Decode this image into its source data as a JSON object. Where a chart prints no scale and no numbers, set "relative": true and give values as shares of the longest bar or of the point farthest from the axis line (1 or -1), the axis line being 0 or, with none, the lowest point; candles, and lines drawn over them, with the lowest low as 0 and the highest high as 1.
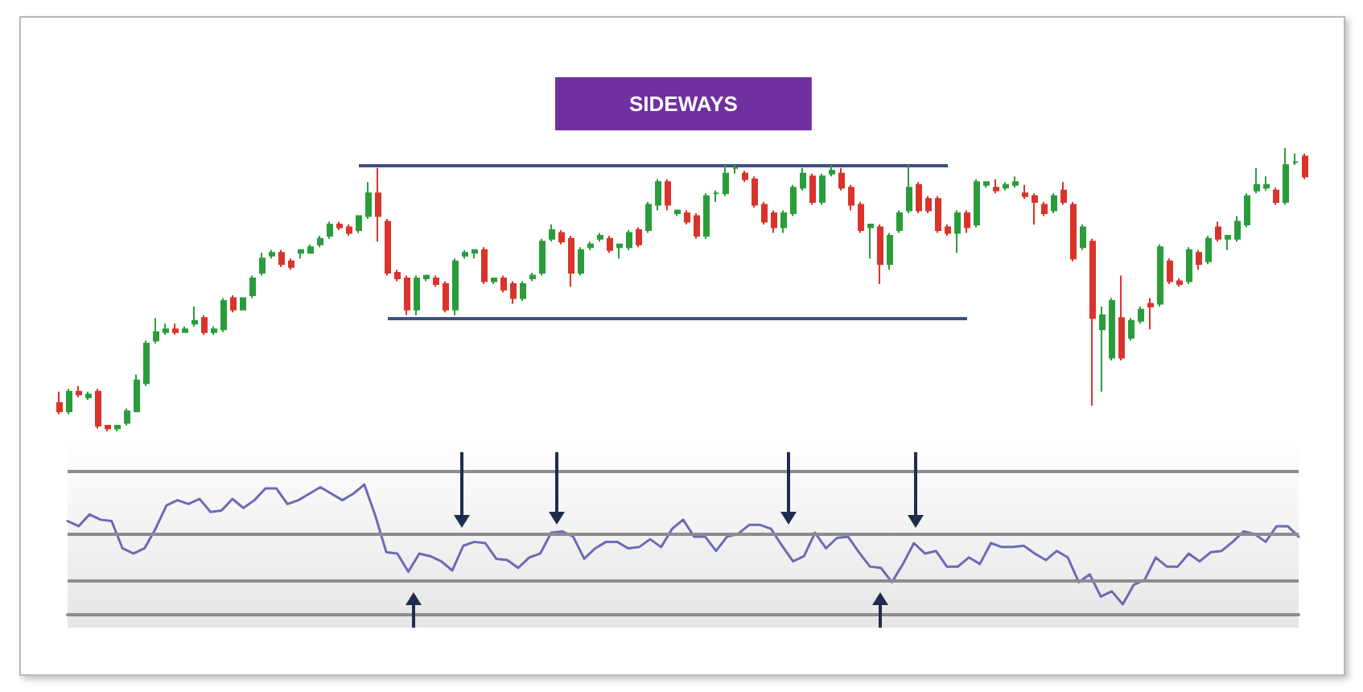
{
  "chart_data": [
    {
      "type": "candlestick",
      "title": "SIDEWAYS",
      "relative": true,
      "colors": [
        "#d9342b",
        "#2a9d3a",
        "#d9342b",
        "#2a9d3a",
        "#d9342b",
        "#d9342b",
        "#2a9d3a",
        "#2a9d3a",
        "#2a9d3a",
        "#2a9d3a",
        "#2a9d3a",
        "#2a9d3a",
        "#d9342b",
        "#2a9d3a",
        "#2a9d3a",
        "#d9342b",
        "#2a9d3a",
        "#2a9d3a",
        "#d9342b",
        "#2a9d3a",
        "#2a9d3a",
        "#2a9d3a",
        "#2a9d3a",
        "#d9342b",
        "#d9342b",
        "#2a9d3a",
        "#2a9d3a",
        "#2a9d3a",
        "#2a9d3a",
        "#d9342b",
        "#d9342b",
        "#2a9d3a",
        "#2a9d3a",
        "#d9342b",
        "#d9342b",
        "#d9342b",
        "#d9342b",
        "#2a9d3a",
        "#2a9d3a",
        "#d9342b",
        "#d9342b",
        "#2a9d3a",
        "#2a9d3a",
        "#2a9d3a",
        "#d9342b",
        "#2a9d3a",
        "#d9342b",
        "#d9342b",
        "#2a9d3a",
        "#2a9d3a",
        "#2a9d3a",
        "#2a9d3a",
        "#d9342b",
        "#d9342b",
        "#2a9d3a",
        "#2a9d3a",
        "#2a9d3a",
        "#d9342b",
        "#2a9d3a",
        "#2a9d3a",
        "#d9342b",
        "#2a9d3a",
        "#2a9d3a",
        "#d9342b",
        "#2a9d3a",
        "#d9342b",
        "#d9342b",
        "#2a9d3a",
        "#2a9d3a",
        "#2a9d3a",
        "#2a9d3a",
        "#d9342b",
        "#d9342b",
        "#d9342b",
        "#d9342b",
        "#2a9d3a",
        "#2a9d3a",
        "#2a9d3a",
        "#d9342b",
        "#2a9d3a",
        "#2a9d3a",
        "#d9342b",
        "#d9342b",
        "#d9342b",
        "#2a9d3a",
        "#d9342b",
        "#2a9d3a",
        "#2a9d3a",
        "#2a9d3a",
        "#d9342b",
        "#d9342b",
        "#d9342b",
        "#d9342b",
        "#2a9d3a",
        "#d9342b",
        "#2a9d3a",
        "#2a9d3a",
        "#d9342b",
        "#2a9d3a",
        "#2a9d3a",
        "#d9342b",
        "#d9342b",
        "#d9342b",
        "#2a9d3a",
        "#d9342b",
        "#d9342b",
        "#2a9d3a",
        "#d9342b",
        "#2a9d3a",
        "#2a9d3a",
        "#d9342b",
        "#2a9d3a",
        "#2a9d3a",
        "#d9342b",
        "#2a9d3a",
        "#d9342b",
        "#d9342b",
        "#2a9d3a",
        "#d9342b",
        "#2a9d3a",
        "#d9342b",
        "#2a9d3a",
        "#2a9d3a",
        "#2a9d3a",
        "#2a9d3a",
        "#2a9d3a",
        "#d9342b",
        "#2a9d3a",
        "#2a9d3a",
        "#d9342b"
      ],
      "categories": [
        null,
        null,
        null,
        null,
        null,
        null,
        null,
        null,
        null,
        null,
        null,
        null,
        null,
        null,
        null,
        null,
        null,
        null,
        null,
        null,
        null,
        null,
        null,
        null,
        null,
        null,
        null,
        null,
        null,
        null,
        null,
        null,
        null,
        null,
        null,
        null,
        null,
        null,
        null,
        null,
        null,
        null,
        null,
        null,
        null,
        null,
        null,
        null,
        null,
        null,
        null,
        null,
        null,
        null,
        null,
        null,
        null,
        null,
        null,
        null,
        null,
        null,
        null,
        null,
        null,
        null,
        null,
        null,
        null,
        null,
        null,
        null,
        null,
        null,
        null,
        null,
        null,
        null,
        null,
        null,
        null,
        null,
        null,
        null,
        null,
        null,
        null,
        null,
        null,
        null,
        null,
        null,
        null,
        null,
        null,
        null,
        null,
        null,
        null,
        null,
        null,
        null,
        null,
        null,
        null,
        null,
        null,
        null,
        null,
        null,
        null,
        null,
        null,
        null,
        null,
        null,
        null,
        null,
        null,
        null,
        null,
        null,
        null,
        null,
        null,
        null,
        null,
        null,
        null,
        null
      ],
      "ohlc": [
        [
          0.1,
          0.14,
          0.06,
          0.07
        ],
        [
          0.07,
          0.15,
          0.06,
          0.14
        ],
        [
          0.14,
          0.16,
          0.12,
          0.13
        ],
        [
          0.12,
          0.14,
          0.11,
          0.13
        ],
        [
          0.14,
          0.15,
          0.01,
          0.02
        ],
        [
          0.02,
          0.02,
          0,
          0.01
        ],
        [
          0.01,
          0.02,
          0,
          0.02
        ],
        [
          0.03,
          0.08,
          0.02,
          0.07
        ],
        [
          0.07,
          0.2,
          0.07,
          0.18
        ],
        [
          0.17,
          0.32,
          0.16,
          0.31
        ],
        [
          0.32,
          0.4,
          0.31,
          0.35
        ],
        [
          0.35,
          0.38,
          0.34,
          0.36
        ],
        [
          0.36,
          0.38,
          0.34,
          0.35
        ],
        [
          0.35,
          0.37,
          0.35,
          0.36
        ],
        [
          0.38,
          0.44,
          0.37,
          0.39
        ],
        [
          0.4,
          0.41,
          0.34,
          0.35
        ],
        [
          0.35,
          0.37,
          0.34,
          0.36
        ],
        [
          0.36,
          0.47,
          0.35,
          0.46
        ],
        [
          0.47,
          0.48,
          0.42,
          0.43
        ],
        [
          0.43,
          0.47,
          0.43,
          0.47
        ],
        [
          0.48,
          0.55,
          0.47,
          0.54
        ],
        [
          0.56,
          0.63,
          0.55,
          0.61
        ],
        [
          0.62,
          0.64,
          0.61,
          0.63
        ],
        [
          0.63,
          0.64,
          0.58,
          0.59
        ],
        [
          0.6,
          0.61,
          0.57,
          0.58
        ],
        [
          0.63,
          0.64,
          0.61,
          0.64
        ],
        [
          0.63,
          0.66,
          0.63,
          0.65
        ],
        [
          0.66,
          0.69,
          0.65,
          0.68
        ],
        [
          0.69,
          0.74,
          0.68,
          0.73
        ],
        [
          0.73,
          0.74,
          0.71,
          0.72
        ],
        [
          0.72,
          0.73,
          0.69,
          0.7
        ],
        [
          0.71,
          0.76,
          0.7,
          0.76
        ],
        [
          0.76,
          0.88,
          0.75,
          0.84
        ],
        [
          0.84,
          0.93,
          0.67,
          0.76
        ],
        [
          0.74,
          0.75,
          0.55,
          0.56
        ],
        [
          0.56,
          0.57,
          0.53,
          0.54
        ],
        [
          0.54,
          0.55,
          0.41,
          0.43
        ],
        [
          0.43,
          0.55,
          0.41,
          0.54
        ],
        [
          0.54,
          0.55,
          0.53,
          0.55
        ],
        [
          0.54,
          0.55,
          0.51,
          0.52
        ],
        [
          0.52,
          0.53,
          0.42,
          0.43
        ],
        [
          0.43,
          0.61,
          0.41,
          0.6
        ],
        [
          0.62,
          0.64,
          0.61,
          0.63
        ],
        [
          0.63,
          0.64,
          0.61,
          0.64
        ],
        [
          0.64,
          0.65,
          0.52,
          0.53
        ],
        [
          0.53,
          0.54,
          0.52,
          0.54
        ],
        [
          0.54,
          0.55,
          0.49,
          0.5
        ],
        [
          0.52,
          0.53,
          0.45,
          0.47
        ],
        [
          0.47,
          0.53,
          0.46,
          0.52
        ],
        [
          0.54,
          0.56,
          0.53,
          0.55
        ],
        [
          0.56,
          0.68,
          0.55,
          0.67
        ],
        [
          0.68,
          0.73,
          0.67,
          0.71
        ],
        [
          0.7,
          0.71,
          0.66,
          0.67
        ],
        [
          0.68,
          0.69,
          0.51,
          0.56
        ],
        [
          0.56,
          0.65,
          0.55,
          0.64
        ],
        [
          0.65,
          0.67,
          0.64,
          0.66
        ],
        [
          0.68,
          0.7,
          0.67,
          0.69
        ],
        [
          0.68,
          0.69,
          0.63,
          0.64
        ],
        [
          0.65,
          0.66,
          0.61,
          0.66
        ],
        [
          0.65,
          0.71,
          0.64,
          0.7
        ],
        [
          0.71,
          0.72,
          0.65,
          0.66
        ],
        [
          0.71,
          0.81,
          0.7,
          0.8
        ],
        [
          0.8,
          0.89,
          0.78,
          0.88
        ],
        [
          0.88,
          0.89,
          0.78,
          0.8
        ],
        [
          0.77,
          0.78,
          0.76,
          0.78
        ],
        [
          0.77,
          0.78,
          0.73,
          0.74
        ],
        [
          0.76,
          0.77,
          0.68,
          0.69
        ],
        [
          0.69,
          0.84,
          0.68,
          0.83
        ],
        [
          0.84,
          0.85,
          0.81,
          0.84
        ],
        [
          0.84,
          0.94,
          0.83,
          0.91
        ],
        [
          0.93,
          0.94,
          0.91,
          0.93
        ],
        [
          0.91,
          0.92,
          0.88,
          0.89
        ],
        [
          0.89,
          0.9,
          0.79,
          0.8
        ],
        [
          0.8,
          0.81,
          0.73,
          0.74
        ],
        [
          0.77,
          0.78,
          0.7,
          0.72
        ],
        [
          0.72,
          0.78,
          0.7,
          0.77
        ],
        [
          0.77,
          0.87,
          0.76,
          0.86
        ],
        [
          0.86,
          0.93,
          0.85,
          0.91
        ],
        [
          0.9,
          0.91,
          0.8,
          0.81
        ],
        [
          0.81,
          0.91,
          0.8,
          0.9
        ],
        [
          0.91,
          0.94,
          0.9,
          0.92
        ],
        [
          0.91,
          0.93,
          0.85,
          0.86
        ],
        [
          0.86,
          0.87,
          0.78,
          0.8
        ],
        [
          0.8,
          0.81,
          0.7,
          0.71
        ],
        [
          0.72,
          0.73,
          0.61,
          0.73
        ],
        [
          0.72,
          0.73,
          0.52,
          0.59
        ],
        [
          0.59,
          0.7,
          0.57,
          0.69
        ],
        [
          0.71,
          0.78,
          0.7,
          0.77
        ],
        [
          0.78,
          0.94,
          0.77,
          0.86
        ],
        [
          0.87,
          0.88,
          0.77,
          0.78
        ],
        [
          0.82,
          0.83,
          0.77,
          0.78
        ],
        [
          0.82,
          0.83,
          0.7,
          0.71
        ],
        [
          0.72,
          0.73,
          0.69,
          0.7
        ],
        [
          0.7,
          0.78,
          0.63,
          0.77
        ],
        [
          0.77,
          0.78,
          0.7,
          0.72
        ],
        [
          0.73,
          0.89,
          0.72,
          0.88
        ],
        [
          0.87,
          0.88,
          0.86,
          0.88
        ],
        [
          0.86,
          0.89,
          0.84,
          0.85
        ],
        [
          0.86,
          0.88,
          0.85,
          0.87
        ],
        [
          0.87,
          0.9,
          0.86,
          0.88
        ],
        [
          0.84,
          0.87,
          0.82,
          0.83
        ],
        [
          0.83,
          0.84,
          0.73,
          0.81
        ],
        [
          0.8,
          0.81,
          0.76,
          0.77
        ],
        [
          0.78,
          0.84,
          0.77,
          0.83
        ],
        [
          0.85,
          0.88,
          0.8,
          0.81
        ],
        [
          0.8,
          0.81,
          0.6,
          0.61
        ],
        [
          0.65,
          0.73,
          0.64,
          0.72
        ],
        [
          0.67,
          0.68,
          0.09,
          0.4
        ],
        [
          0.36,
          0.44,
          0.14,
          0.41
        ],
        [
          0.26,
          0.47,
          0.25,
          0.46
        ],
        [
          0.4,
          0.55,
          0.25,
          0.26
        ],
        [
          0.33,
          0.4,
          0.32,
          0.39
        ],
        [
          0.39,
          0.44,
          0.38,
          0.43
        ],
        [
          0.45,
          0.47,
          0.36,
          0.44
        ],
        [
          0.45,
          0.66,
          0.44,
          0.65
        ],
        [
          0.6,
          0.61,
          0.52,
          0.53
        ],
        [
          0.53,
          0.54,
          0.51,
          0.52
        ],
        [
          0.53,
          0.65,
          0.52,
          0.64
        ],
        [
          0.63,
          0.64,
          0.57,
          0.59
        ],
        [
          0.6,
          0.69,
          0.59,
          0.68
        ],
        [
          0.72,
          0.74,
          0.67,
          0.68
        ],
        [
          0.68,
          0.69,
          0.64,
          0.69
        ],
        [
          0.68,
          0.76,
          0.67,
          0.74
        ],
        [
          0.73,
          0.84,
          0.72,
          0.83
        ],
        [
          0.85,
          0.93,
          0.84,
          0.87
        ],
        [
          0.86,
          0.9,
          0.85,
          0.87
        ],
        [
          0.85,
          0.86,
          0.8,
          0.81
        ],
        [
          0.81,
          1,
          0.8,
          0.94
        ],
        [
          0.95,
          0.98,
          0.94,
          0.95
        ],
        [
          0.97,
          0.98,
          0.89,
          0.9
        ]
      ],
      "ref_lines": [
        {
          "axis": "y",
          "value": 0.94,
          "color": "#3f4f7f"
        },
        {
          "axis": "y",
          "value": 0.4,
          "color": "#3f4f7f"
        }
      ]
    },
    {
      "type": "line",
      "relative": true,
      "categories": [
        null,
        null,
        null,
        null,
        null,
        null,
        null,
        null,
        null,
        null,
        null,
        null,
        null,
        null,
        null,
        null,
        null,
        null,
        null,
        null,
        null,
        null,
        null,
        null,
        null,
        null,
        null,
        null,
        null,
        null,
        null,
        null,
        null,
        null,
        null,
        null,
        null,
        null,
        null,
        null,
        null,
        null,
        null,
        null,
        null,
        null,
        null,
        null,
        null,
        null,
        null,
        null,
        null,
        null,
        null,
        null,
        null,
        null,
        null,
        null,
        null,
        null,
        null,
        null,
        null,
        null,
        null,
        null,
        null,
        null,
        null,
        null,
        null,
        null,
        null,
        null,
        null,
        null,
        null,
        null,
        null,
        null,
        null,
        null,
        null,
        null,
        null,
        null,
        null,
        null,
        null,
        null,
        null,
        null,
        null,
        null,
        null,
        null,
        null,
        null,
        null,
        null,
        null,
        null,
        null,
        null,
        null,
        null,
        null,
        null,
        null,
        null,
        null
      ],
      "series": [
        {
          "color": "#6b6bb5",
          "values": [
            0.72,
            0.68,
            0.77,
            0.73,
            0.72,
            0.51,
            0.47,
            0.51,
            0.66,
            0.84,
            0.88,
            0.85,
            0.89,
            0.79,
            0.8,
            0.89,
            0.82,
            0.88,
            0.97,
            0.97,
            0.85,
            0.88,
            0.93,
            0.98,
            0.93,
            0.88,
            0.93,
            1,
            0.76,
            0.48,
            0.47,
            0.33,
            0.47,
            0.45,
            0.41,
            0.34,
            0.53,
            0.56,
            0.55,
            0.43,
            0.42,
            0.36,
            0.44,
            0.47,
            0.63,
            0.64,
            0.6,
            0.43,
            0.51,
            0.56,
            0.56,
            0.51,
            0.52,
            0.58,
            0.52,
            0.66,
            0.73,
            0.6,
            0.6,
            0.49,
            0.6,
            0.62,
            0.69,
            0.69,
            0.66,
            0.53,
            0.41,
            0.45,
            0.63,
            0.51,
            0.59,
            0.6,
            0.48,
            0.37,
            0.36,
            0.25,
            0.39,
            0.55,
            0.47,
            0.49,
            0.37,
            0.37,
            0.44,
            0.39,
            0.55,
            0.52,
            0.52,
            0.53,
            0.47,
            0.42,
            0.49,
            0.44,
            0.25,
            0.31,
            0.14,
            0.18,
            0.08,
            0.23,
            0.27,
            0.44,
            0.37,
            0.37,
            0.47,
            0.41,
            0.48,
            0.49,
            0.56,
            0.64,
            0.62,
            0.56,
            0.68,
            0.68,
            0.6
          ]
        }
      ],
      "ref_lines": [
        {
          "axis": "y",
          "value": 1.1,
          "color": "#8c8c8c"
        },
        {
          "axis": "y",
          "value": 0.62,
          "color": "#8c8c8c"
        },
        {
          "axis": "y",
          "value": 0.26,
          "color": "#8c8c8c"
        }
      ]
    }
  ]
}
